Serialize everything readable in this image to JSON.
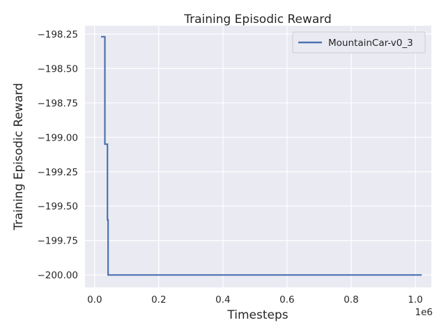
{
  "chart_data": {
    "type": "line",
    "title": "Training Episodic Reward",
    "xlabel": "Timesteps",
    "ylabel": "Training Episodic Reward",
    "x_offset_label": "1e6",
    "xlim": [
      -0.03,
      1.05
    ],
    "ylim": [
      -200.09,
      -198.19
    ],
    "x_ticks": [
      0.0,
      0.2,
      0.4,
      0.6,
      0.8,
      1.0
    ],
    "x_tick_labels": [
      "0.0",
      "0.2",
      "0.4",
      "0.6",
      "0.8",
      "1.0"
    ],
    "y_ticks": [
      -198.25,
      -198.5,
      -198.75,
      -199.0,
      -199.25,
      -199.5,
      -199.75,
      -200.0
    ],
    "y_tick_labels": [
      "−198.25",
      "−198.50",
      "−198.75",
      "−199.00",
      "−199.25",
      "−199.50",
      "−199.75",
      "−200.00"
    ],
    "grid": true,
    "legend_position": "top-right",
    "series": [
      {
        "name": "MountainCar-v0_3",
        "color": "#4c72b0",
        "x": [
          0.02,
          0.032,
          0.032,
          0.04,
          0.04,
          0.042,
          0.042,
          1.02
        ],
        "y": [
          -198.27,
          -198.27,
          -199.05,
          -199.05,
          -199.6,
          -199.6,
          -200.0,
          -200.0
        ]
      }
    ]
  }
}
